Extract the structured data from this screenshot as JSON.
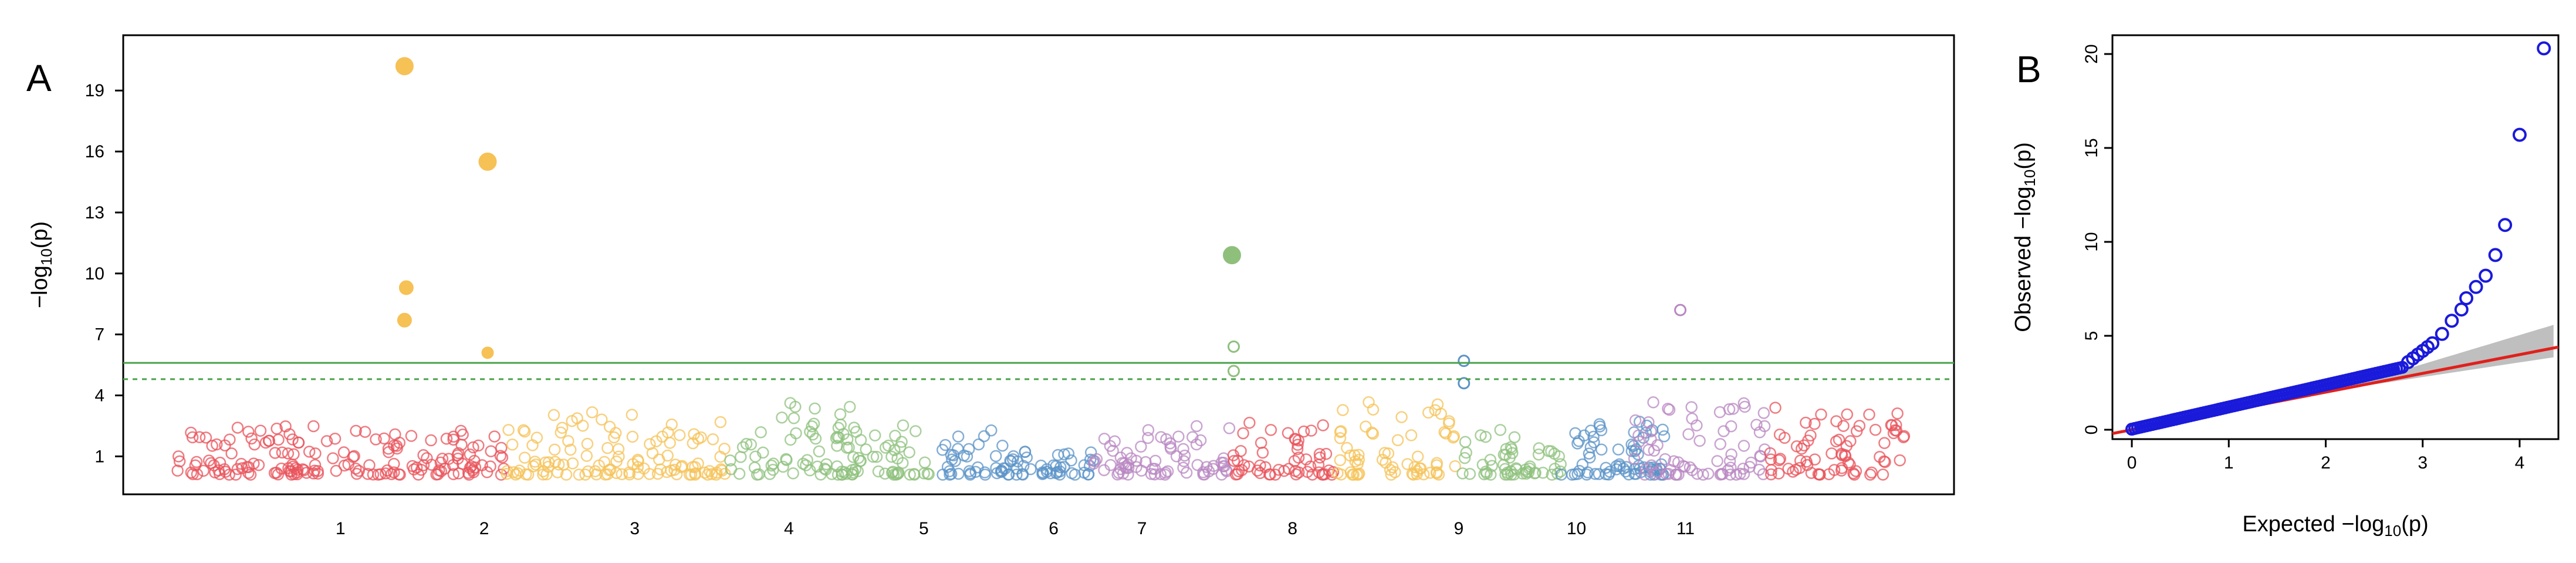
{
  "chart_data": [
    {
      "panel_label": "A",
      "type": "scatter",
      "ylabel_main": "−log",
      "ylabel_sub": "10",
      "ylabel_tail": "(p)",
      "yticks": [
        1,
        4,
        7,
        10,
        13,
        16,
        19
      ],
      "ylim": [
        0,
        21
      ],
      "chromosomes": [
        "1",
        "2",
        "3",
        "4",
        "5",
        "6",
        "7",
        "8",
        "9",
        "10",
        "11"
      ],
      "chrom_colors": [
        "#e8525a",
        "#f6c155",
        "#8ec07c",
        "#5b93c7",
        "#b887c2",
        "#e8525a",
        "#f6c155",
        "#8ec07c",
        "#5b93c7",
        "#b887c2",
        "#e8525a"
      ],
      "background_ranges": [
        {
          "chrom": "1",
          "from": 0.0,
          "to": 0.1,
          "max": 2.4
        },
        {
          "chrom": "1",
          "from": 0.1,
          "to": 0.19,
          "max": 2.2
        },
        {
          "chrom": "2",
          "from": 0.19,
          "to": 0.27,
          "max": 3.2
        },
        {
          "chrom": "2",
          "from": 0.27,
          "to": 0.32,
          "max": 2.6
        },
        {
          "chrom": "3",
          "from": 0.32,
          "to": 0.39,
          "max": 3.6
        },
        {
          "chrom": "3",
          "from": 0.39,
          "to": 0.44,
          "max": 2.8
        },
        {
          "chrom": "4",
          "from": 0.44,
          "to": 0.48,
          "max": 2.4
        },
        {
          "chrom": "4",
          "from": 0.48,
          "to": 0.53,
          "max": 1.2
        },
        {
          "chrom": "5",
          "from": 0.53,
          "to": 0.56,
          "max": 2.0
        },
        {
          "chrom": "5",
          "from": 0.56,
          "to": 0.61,
          "max": 2.6
        },
        {
          "chrom": "6",
          "from": 0.61,
          "to": 0.65,
          "max": 2.8
        },
        {
          "chrom": "6",
          "from": 0.65,
          "to": 0.67,
          "max": 2.6
        },
        {
          "chrom": "7",
          "from": 0.67,
          "to": 0.74,
          "max": 3.6
        },
        {
          "chrom": "8",
          "from": 0.74,
          "to": 0.78,
          "max": 2.4
        },
        {
          "chrom": "8",
          "from": 0.78,
          "to": 0.8,
          "max": 1.8
        },
        {
          "chrom": "9",
          "from": 0.8,
          "to": 0.86,
          "max": 3.0
        },
        {
          "chrom": "9",
          "from": 0.86,
          "to": 0.84,
          "max": 2.8
        },
        {
          "chrom": "10",
          "from": 0.84,
          "to": 0.92,
          "max": 3.6
        },
        {
          "chrom": "11",
          "from": 0.92,
          "to": 1.0,
          "max": 3.4
        }
      ],
      "significant_points": [
        {
          "pos": 0.132,
          "y": 20.2,
          "chrom": "2",
          "filled": true,
          "size": "lg"
        },
        {
          "pos": 0.18,
          "y": 15.5,
          "chrom": "2",
          "filled": true,
          "size": "lg"
        },
        {
          "pos": 0.133,
          "y": 9.3,
          "chrom": "2",
          "filled": true,
          "size": "md"
        },
        {
          "pos": 0.132,
          "y": 7.7,
          "chrom": "2",
          "filled": true,
          "size": "md"
        },
        {
          "pos": 0.18,
          "y": 6.1,
          "chrom": "2",
          "filled": true,
          "size": "sm"
        },
        {
          "pos": 0.61,
          "y": 10.9,
          "chrom": "8",
          "filled": true,
          "size": "lg"
        },
        {
          "pos": 0.611,
          "y": 6.4,
          "chrom": "8",
          "filled": false,
          "size": "sm"
        },
        {
          "pos": 0.611,
          "y": 5.2,
          "chrom": "8",
          "filled": false,
          "size": "sm"
        },
        {
          "pos": 0.869,
          "y": 8.2,
          "chrom": "10",
          "filled": false,
          "size": "sm"
        },
        {
          "pos": 0.744,
          "y": 5.7,
          "chrom": "9",
          "filled": false,
          "size": "sm"
        },
        {
          "pos": 0.744,
          "y": 4.6,
          "chrom": "9",
          "filled": false,
          "size": "sm"
        }
      ],
      "threshold_solid": 5.6,
      "threshold_dashed": 4.8,
      "threshold_color": "#4aa24a"
    },
    {
      "panel_label": "B",
      "type": "scatter",
      "xlabel": "Expected  −log",
      "xlabel_sub": "10",
      "xlabel_tail": "(p)",
      "ylabel": "Observed  −log",
      "ylabel_sub": "10",
      "ylabel_tail": "(p)",
      "xticks": [
        0,
        1,
        2,
        3,
        4
      ],
      "yticks": [
        0,
        5,
        10,
        15,
        20
      ],
      "xlim": [
        -0.2,
        4.4
      ],
      "ylim": [
        -0.5,
        21
      ],
      "point_color": "#1a1adb",
      "reference_color": "#e0201c",
      "band_color": "#aaaaaa",
      "tail_points": [
        [
          2.85,
          3.6
        ],
        [
          2.9,
          3.8
        ],
        [
          2.95,
          4.0
        ],
        [
          3.0,
          4.2
        ],
        [
          3.05,
          4.4
        ],
        [
          3.1,
          4.6
        ],
        [
          3.2,
          5.1
        ],
        [
          3.3,
          5.8
        ],
        [
          3.4,
          6.4
        ],
        [
          3.45,
          7.0
        ],
        [
          3.55,
          7.6
        ],
        [
          3.65,
          8.2
        ],
        [
          3.75,
          9.3
        ],
        [
          3.85,
          10.9
        ],
        [
          4.0,
          15.7
        ],
        [
          4.25,
          20.3
        ]
      ]
    }
  ]
}
